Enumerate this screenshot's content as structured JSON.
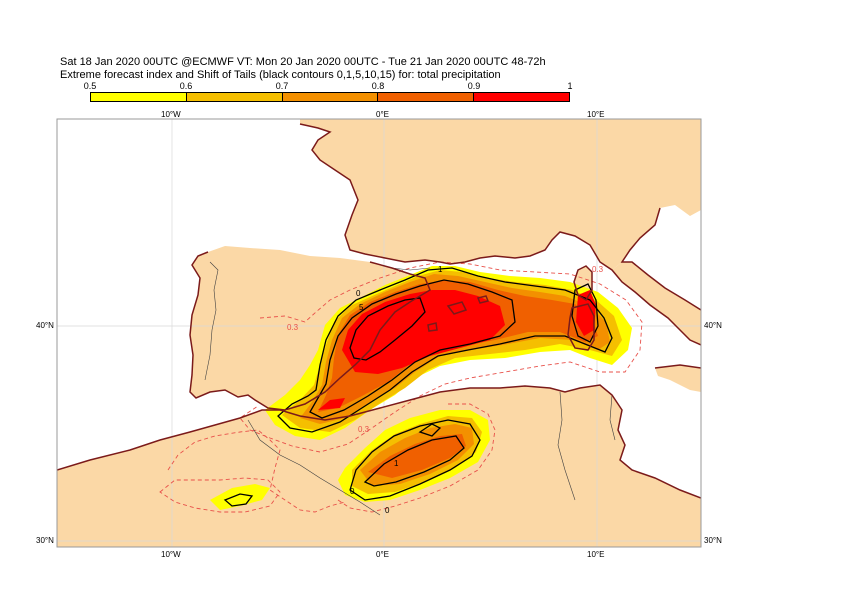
{
  "header": {
    "line1": "Sat 18 Jan 2020 00UTC @ECMWF VT: Mon 20 Jan 2020 00UTC - Tue 21 Jan 2020 00UTC  48-72h",
    "line2": "Extreme forecast index and Shift of Tails (black contours 0,1,5,10,15) for: total precipitation"
  },
  "colorbar": {
    "labels": [
      "0.5",
      "0.6",
      "0.7",
      "0.8",
      "0.9",
      "1"
    ],
    "colors": [
      "#ffff00",
      "#f5bf00",
      "#f39000",
      "#f06000",
      "#ff0000"
    ]
  },
  "axes": {
    "lon_top": [
      "10°W",
      "0°E",
      "10°E"
    ],
    "lon_bottom": [
      "10°W",
      "0°E",
      "10°E"
    ],
    "lat_left": [
      "40°N",
      "30°N"
    ],
    "lat_right": [
      "40°N",
      "30°N"
    ]
  },
  "map": {
    "land_color": "#fbd8a6",
    "sea_color": "#ffffff",
    "coast_color": "#7b1a1a",
    "contour_labels": [
      "0",
      "1",
      "5",
      "0",
      "1",
      "0",
      "0.3",
      "0.3",
      "0.3"
    ]
  }
}
